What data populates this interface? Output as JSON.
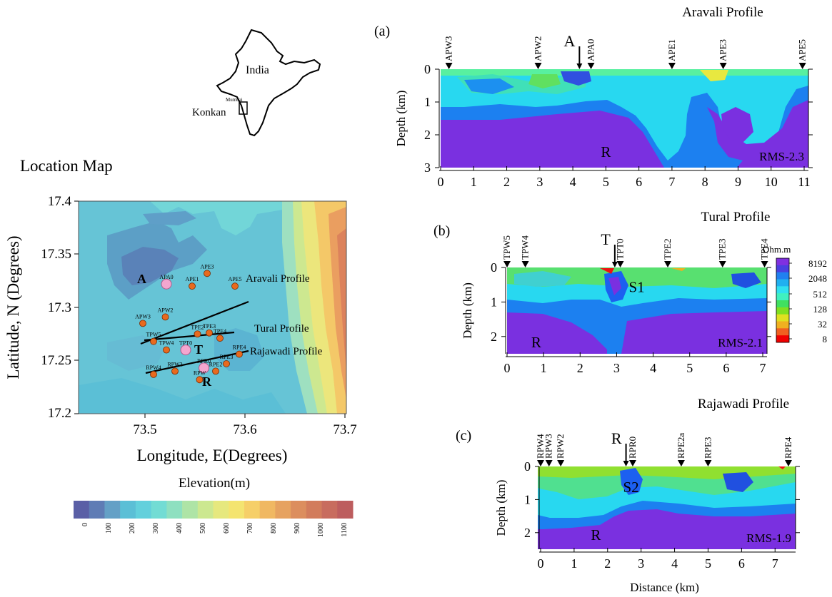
{
  "india_map": {
    "country": "India",
    "city": "Mumbai",
    "region": "Konkan"
  },
  "location_map": {
    "title": "Location Map",
    "xlabel": "Longitude, E(Degrees)",
    "ylabel": "Latitude, N (Degrees)",
    "xticks": [
      "73.5",
      "73.6",
      "73.7"
    ],
    "yticks": [
      "17.4",
      "17.35",
      "17.3",
      "17.25",
      "17.2"
    ],
    "profiles": {
      "aravali": "Aravali Profile",
      "tural": "Tural Profile",
      "rajawadi": "Rajawadi Profile"
    },
    "big_labels": {
      "a": "A",
      "t": "T",
      "r": "R"
    },
    "stations": [
      {
        "id": "APA0",
        "lon": 73.532,
        "lat": 17.322,
        "big": true
      },
      {
        "id": "APE3",
        "lon": 73.57,
        "lat": 17.332
      },
      {
        "id": "APE1",
        "lon": 73.556,
        "lat": 17.32
      },
      {
        "id": "APE5",
        "lon": 73.596,
        "lat": 17.32
      },
      {
        "id": "APW2",
        "lon": 73.531,
        "lat": 17.291
      },
      {
        "id": "APW3",
        "lon": 73.51,
        "lat": 17.285
      },
      {
        "id": "TPE2",
        "lon": 73.561,
        "lat": 17.275
      },
      {
        "id": "TPE3",
        "lon": 73.572,
        "lat": 17.276
      },
      {
        "id": "TPE4",
        "lon": 73.582,
        "lat": 17.271
      },
      {
        "id": "TPW5",
        "lon": 73.52,
        "lat": 17.268
      },
      {
        "id": "TPW4",
        "lon": 73.532,
        "lat": 17.26
      },
      {
        "id": "TPT0",
        "lon": 73.55,
        "lat": 17.26,
        "big": true
      },
      {
        "id": "RPE4",
        "lon": 73.6,
        "lat": 17.256
      },
      {
        "id": "RPE3",
        "lon": 73.588,
        "lat": 17.247
      },
      {
        "id": "RPE2",
        "lon": 73.578,
        "lat": 17.24
      },
      {
        "id": "RPR0",
        "lon": 73.567,
        "lat": 17.243,
        "big": true
      },
      {
        "id": "RPW2",
        "lon": 73.54,
        "lat": 17.24
      },
      {
        "id": "RPW4",
        "lon": 73.52,
        "lat": 17.237
      },
      {
        "id": "RPW",
        "lon": 73.563,
        "lat": 17.232
      }
    ]
  },
  "elevation_legend": {
    "title": "Elevation(m)",
    "ticks": [
      "0",
      "100",
      "200",
      "300",
      "400",
      "500",
      "600",
      "700",
      "800",
      "900",
      "1000",
      "1100"
    ],
    "colors": [
      "#5a5fa6",
      "#5f7cb5",
      "#64a0c6",
      "#5bbfd6",
      "#63d0dc",
      "#72dcd4",
      "#8ee0c0",
      "#aee4a6",
      "#cce890",
      "#e6e87e",
      "#f4e470",
      "#f6cf68",
      "#f0b862",
      "#e6a260",
      "#dc8e5e",
      "#d27c5c",
      "#c86c5e",
      "#bd5d5e"
    ]
  },
  "resistivity_legend": {
    "unit": "Ohm.m",
    "labels": [
      "8192",
      "2048",
      "512",
      "128",
      "32",
      "8"
    ],
    "colors": [
      "#8030e0",
      "#4a40e0",
      "#2080f0",
      "#20b0f0",
      "#30e0f0",
      "#40f0c0",
      "#40e060",
      "#80e020",
      "#e0e020",
      "#f0b020",
      "#f06020",
      "#f00000"
    ]
  },
  "sections": [
    {
      "panel": "(a)",
      "title": "Aravali Profile",
      "rms": "RMS-2.3",
      "ylabel": "Depth (km)",
      "xmax": 11,
      "depth_max": 3,
      "xticks": [
        "0",
        "1",
        "2",
        "3",
        "4",
        "5",
        "6",
        "7",
        "8",
        "9",
        "10",
        "11"
      ],
      "yticks": [
        "0",
        "1",
        "2",
        "3"
      ],
      "stations": [
        {
          "name": "APW3",
          "x": 0.25
        },
        {
          "name": "APW2",
          "x": 2.95
        },
        {
          "name": "APA0",
          "x": 4.55
        },
        {
          "name": "APE1",
          "x": 7.0
        },
        {
          "name": "APE3",
          "x": 8.55
        },
        {
          "name": "APE5",
          "x": 10.95
        }
      ],
      "marker": {
        "label": "A",
        "x": 4.2
      },
      "letters": [
        {
          "text": "R",
          "x": 5.0,
          "d": 2.5
        }
      ]
    },
    {
      "panel": "(b)",
      "title": "Tural Profile",
      "rms": "RMS-2.1",
      "ylabel": "Depth (km)",
      "xmax": 7,
      "depth_max": 2.5,
      "xticks": [
        "0",
        "1",
        "2",
        "3",
        "4",
        "5",
        "6",
        "7"
      ],
      "yticks": [
        "0",
        "1",
        "2"
      ],
      "stations": [
        {
          "name": "TPW5",
          "x": 0.0
        },
        {
          "name": "TPW4",
          "x": 0.5
        },
        {
          "name": "TPT0",
          "x": 3.1
        },
        {
          "name": "TPE2",
          "x": 4.4
        },
        {
          "name": "TPE3",
          "x": 5.9
        },
        {
          "name": "TPE4",
          "x": 7.05
        }
      ],
      "marker": {
        "label": "T",
        "x": 2.95
      },
      "letters": [
        {
          "text": "S1",
          "x": 3.55,
          "d": 0.55
        },
        {
          "text": "R",
          "x": 0.8,
          "d": 2.15
        }
      ]
    },
    {
      "panel": "(c)",
      "title": "Rajawadi Profile",
      "rms": "RMS-1.9",
      "ylabel": "Depth (km)",
      "xlabel": "Distance (km)",
      "xmax": 7.4,
      "depth_max": 2.5,
      "xticks": [
        "0",
        "1",
        "2",
        "3",
        "4",
        "5",
        "6",
        "7"
      ],
      "yticks": [
        "0",
        "1",
        "2"
      ],
      "stations": [
        {
          "name": "RPW4",
          "x": 0.0
        },
        {
          "name": "RPW3",
          "x": 0.25
        },
        {
          "name": "RPW2",
          "x": 0.6
        },
        {
          "name": "RPR0",
          "x": 2.75
        },
        {
          "name": "RPE2a",
          "x": 4.2
        },
        {
          "name": "RPE3",
          "x": 5.0
        },
        {
          "name": "RPE4",
          "x": 7.4
        }
      ],
      "marker": {
        "label": "R",
        "x": 2.55
      },
      "letters": [
        {
          "text": "S2",
          "x": 2.7,
          "d": 0.6
        },
        {
          "text": "R",
          "x": 1.65,
          "d": 2.05
        }
      ]
    }
  ]
}
